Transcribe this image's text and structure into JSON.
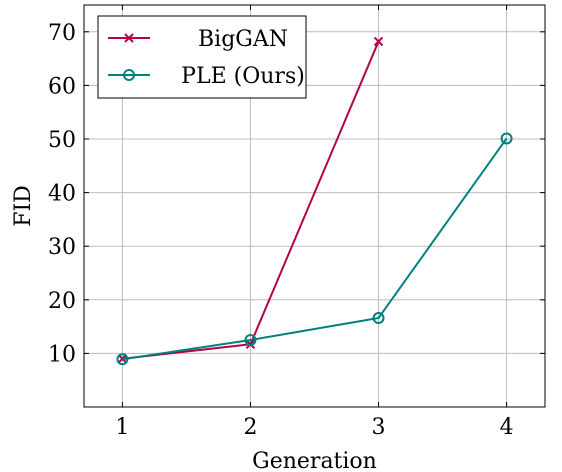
{
  "chart_data": {
    "type": "line",
    "title": "",
    "xlabel": "Generation",
    "ylabel": "FID",
    "x": [
      1,
      2,
      3,
      4
    ],
    "xlim": [
      0.7,
      4.3
    ],
    "ylim": [
      0,
      75
    ],
    "xticks": [
      1,
      2,
      3,
      4
    ],
    "xtick_labels": [
      "1",
      "2",
      "3",
      "4"
    ],
    "yticks": [
      10,
      20,
      30,
      40,
      50,
      60,
      70
    ],
    "ytick_labels": [
      "10",
      "20",
      "30",
      "40",
      "50",
      "60",
      "70"
    ],
    "grid": true,
    "legend_position": "top-left",
    "series": [
      {
        "name": "BigGAN",
        "x": [
          1,
          2,
          3
        ],
        "values": [
          9.0,
          11.7,
          68.2
        ],
        "color": "#b5004e",
        "marker": "x"
      },
      {
        "name": "PLE (Ours)",
        "x": [
          1,
          2,
          3,
          4
        ],
        "values": [
          8.9,
          12.5,
          16.6,
          50.1
        ],
        "color": "#00807f",
        "marker": "circle"
      }
    ]
  }
}
